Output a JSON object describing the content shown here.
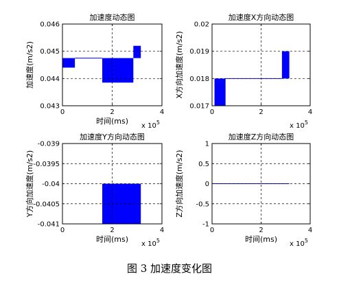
{
  "caption": "图 3  加速度变化图",
  "colors": {
    "series": "#0000ff",
    "grid": "#000000",
    "axis": "#000000"
  },
  "chart_data": [
    {
      "type": "area",
      "title": "加速度动态图",
      "xlabel": "时间(ms)",
      "ylabel": "加速度(m/s2)",
      "x_multiplier": "x 10^5",
      "xlim": [
        0,
        4
      ],
      "ylim": [
        0.043,
        0.046
      ],
      "xticks": [
        "0",
        "2",
        "4"
      ],
      "yticks": [
        "0.046",
        "0.045",
        "0.044",
        "0.043"
      ],
      "ytick_values": [
        0.046,
        0.045,
        0.044,
        0.043
      ],
      "grid": true,
      "baseline": 0.04475,
      "x": [
        0,
        0.5,
        0.5,
        1.6,
        1.6,
        2.85,
        2.85,
        3.15
      ],
      "y": [
        0.0444,
        0.0444,
        0.04475,
        0.04475,
        0.04385,
        0.04385,
        0.0452,
        0.04385
      ]
    },
    {
      "type": "area",
      "title": "加速度X方向动态图",
      "xlabel": "",
      "ylabel": "X方向加速度(m/s2)",
      "x_multiplier": "x 10^5",
      "xlim": [
        0,
        4
      ],
      "ylim": [
        0.017,
        0.02
      ],
      "xticks": [
        "0",
        "2",
        "4"
      ],
      "yticks": [
        "0.02",
        "0.019",
        "0.018",
        "0.017"
      ],
      "ytick_values": [
        0.02,
        0.019,
        0.018,
        0.017
      ],
      "grid": true,
      "baseline": 0.018,
      "x": [
        0.1,
        0.55,
        0.55,
        2.85,
        2.85,
        3.15
      ],
      "y": [
        0.017,
        0.017,
        0.018,
        0.018,
        0.019,
        0.019
      ]
    },
    {
      "type": "area",
      "title": "加速度Y方向动态图",
      "xlabel": "时间(ms)",
      "ylabel": "Y方向加速度(m/s2)",
      "x_multiplier": "x 10^5",
      "xlim": [
        0,
        4
      ],
      "ylim": [
        -0.041,
        -0.039
      ],
      "xticks": [
        "0",
        "2",
        "4"
      ],
      "yticks": [
        "-0.039",
        "-0.0395",
        "-0.04",
        "-0.0405",
        "-0.041"
      ],
      "ytick_values": [
        -0.039,
        -0.0395,
        -0.04,
        -0.0405,
        -0.041
      ],
      "grid": true,
      "baseline": -0.041,
      "x": [
        0,
        1.6,
        1.6,
        3.15
      ],
      "y": [
        -0.041,
        -0.041,
        -0.04,
        -0.04
      ]
    },
    {
      "type": "line",
      "title": "加速度Z方向动态图",
      "xlabel": "时间(ms)",
      "ylabel": "Z方向加速度(m/s2)",
      "x_multiplier": "x 10^5",
      "xlim": [
        0,
        4
      ],
      "ylim": [
        -1,
        1
      ],
      "xticks": [
        "0",
        "2",
        "4"
      ],
      "yticks": [
        "1",
        "0.5",
        "0",
        "-0.5",
        "-1"
      ],
      "ytick_values": [
        1,
        0.5,
        0,
        -0.5,
        -1
      ],
      "grid": true,
      "baseline": 0,
      "x": [
        0,
        3.15
      ],
      "y": [
        0,
        0
      ]
    }
  ]
}
